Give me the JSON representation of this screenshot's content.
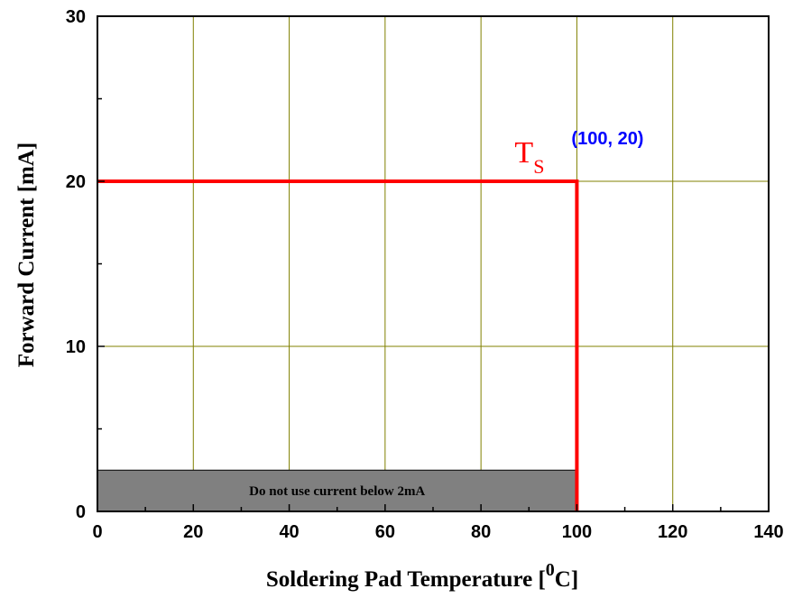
{
  "chart_data": {
    "type": "line",
    "xlabel": "Soldering Pad Temperature [",
    "xlabel_sup": "0",
    "xlabel_tail": "C]",
    "ylabel": "Forward Current [mA]",
    "xlim": [
      0,
      140
    ],
    "ylim": [
      0,
      30
    ],
    "x_ticks": [
      0,
      20,
      40,
      60,
      80,
      100,
      120,
      140
    ],
    "y_ticks": [
      0,
      10,
      20,
      30
    ],
    "grid": true,
    "colors": {
      "grid": "#808000",
      "series": "#ff0000",
      "band": "#808080",
      "point_label": "#0000ff"
    },
    "series": [
      {
        "x": [
          0,
          100,
          100
        ],
        "y": [
          20,
          20,
          0
        ]
      }
    ],
    "band": {
      "x_range": [
        0,
        100
      ],
      "y_range": [
        0,
        2.5
      ],
      "label": "Do not use current below 2mA"
    },
    "annotations": {
      "curve_label": "T",
      "curve_label_sub": "S",
      "point_label": "(100, 20)",
      "point": [
        100,
        20
      ]
    }
  }
}
